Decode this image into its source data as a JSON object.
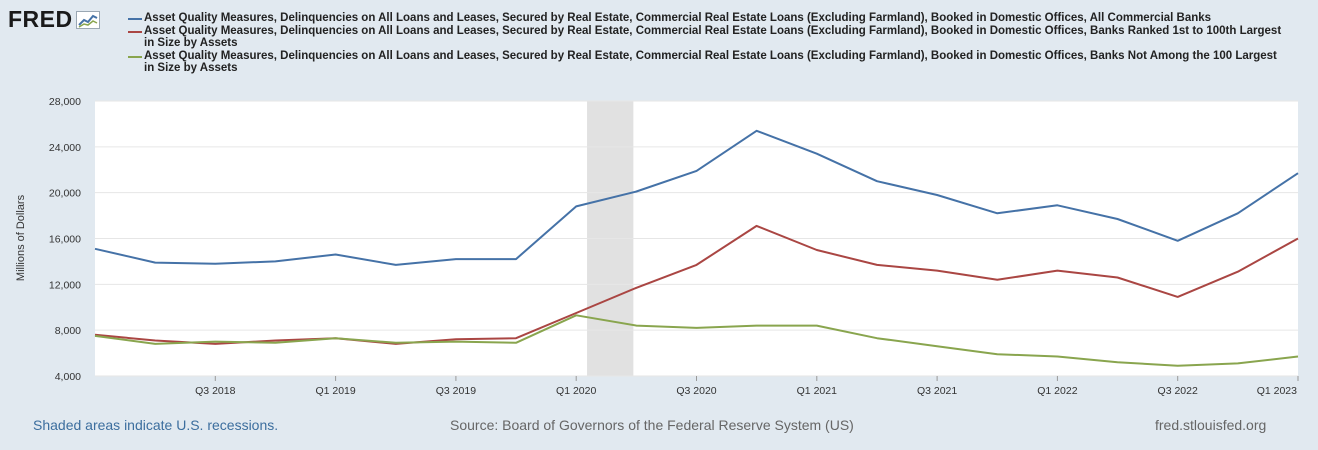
{
  "logo": {
    "text": "FRED",
    "icon": "trend-chart-icon"
  },
  "colors": {
    "series_all": "#4572a7",
    "series_top100": "#aa4643",
    "series_not_top100": "#89a54e",
    "recession": "#e1e1e1",
    "background": "#e1e9f0"
  },
  "legend": [
    {
      "label": "Asset Quality Measures, Delinquencies on All Loans and Leases, Secured by Real Estate, Commercial Real Estate Loans (Excluding Farmland), Booked in Domestic Offices, All Commercial Banks",
      "color": "#4572a7"
    },
    {
      "label": "Asset Quality Measures, Delinquencies on All Loans and Leases, Secured by Real Estate, Commercial Real Estate Loans (Excluding Farmland), Booked in Domestic Offices, Banks Ranked 1st to 100th Largest in Size by Assets",
      "color": "#aa4643"
    },
    {
      "label": "Asset Quality Measures, Delinquencies on All Loans and Leases, Secured by Real Estate, Commercial Real Estate Loans (Excluding Farmland), Booked in Domestic Offices, Banks Not Among the 100 Largest in Size by Assets",
      "color": "#89a54e"
    }
  ],
  "chart_data": {
    "type": "line",
    "x": [
      "Q1 2018",
      "Q2 2018",
      "Q3 2018",
      "Q4 2018",
      "Q1 2019",
      "Q2 2019",
      "Q3 2019",
      "Q4 2019",
      "Q1 2020",
      "Q2 2020",
      "Q3 2020",
      "Q4 2020",
      "Q1 2021",
      "Q2 2021",
      "Q3 2021",
      "Q4 2021",
      "Q1 2022",
      "Q2 2022",
      "Q3 2022",
      "Q4 2022",
      "Q1 2023"
    ],
    "tick_labels": [
      "Q3 2018",
      "Q1 2019",
      "Q3 2019",
      "Q1 2020",
      "Q3 2020",
      "Q1 2021",
      "Q3 2021",
      "Q1 2022",
      "Q3 2022",
      "Q1 2023"
    ],
    "ylabel": "Millions of Dollars",
    "ylim": [
      4000,
      28000
    ],
    "yticks": [
      "4,000",
      "8,000",
      "12,000",
      "16,000",
      "20,000",
      "24,000",
      "28,000"
    ],
    "grid": true,
    "recession": {
      "from": "Q1 2020",
      "to": "Q2 2020"
    },
    "series": [
      {
        "name": "All Commercial Banks",
        "color": "#4572a7",
        "values": [
          15100,
          13900,
          13800,
          14000,
          14600,
          13700,
          14200,
          14200,
          18800,
          20100,
          21900,
          25400,
          23400,
          21000,
          19800,
          18200,
          18900,
          17700,
          15800,
          18200,
          21700
        ]
      },
      {
        "name": "Banks Ranked 1st to 100th Largest in Size by Assets",
        "color": "#aa4643",
        "values": [
          7600,
          7100,
          6800,
          7100,
          7300,
          6800,
          7200,
          7300,
          9500,
          11700,
          13700,
          17100,
          15000,
          13700,
          13200,
          12400,
          13200,
          12600,
          10900,
          13100,
          16000
        ]
      },
      {
        "name": "Banks Not Among the 100 Largest in Size by Assets",
        "color": "#89a54e",
        "values": [
          7500,
          6800,
          7000,
          6900,
          7300,
          6900,
          7000,
          6900,
          9300,
          8400,
          8200,
          8400,
          8400,
          7300,
          6600,
          5900,
          5700,
          5200,
          4900,
          5100,
          5700
        ]
      }
    ]
  },
  "footer": {
    "recession_note": "Shaded areas indicate U.S. recessions.",
    "source": "Source: Board of Governors of the Federal Reserve System (US)",
    "site": "fred.stlouisfed.org"
  }
}
